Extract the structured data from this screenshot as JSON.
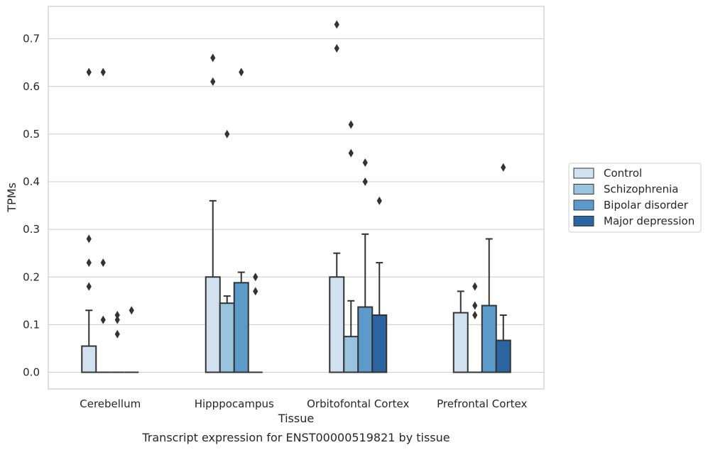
{
  "chart_data": {
    "type": "bar",
    "xlabel": "Tissue",
    "ylabel": "TPMs",
    "caption": "Transcript expression for ENST00000519821 by tissue",
    "ylim": [
      -0.035,
      0.768
    ],
    "yticks": [
      "0.0",
      "0.1",
      "0.2",
      "0.3",
      "0.4",
      "0.5",
      "0.6",
      "0.7"
    ],
    "grid": "horizontal",
    "legend_position": "right",
    "categories": [
      "Cerebellum",
      "Hipppocampus",
      "Orbitofontal Cortex",
      "Prefrontal Cortex"
    ],
    "series": [
      {
        "name": "Control",
        "color": "#d1e1f0",
        "values": [
          0.055,
          0.2,
          0.2,
          0.125
        ],
        "whisker_high": [
          0.13,
          0.36,
          0.25,
          0.17
        ],
        "outliers": [
          [
            0.18,
            0.23,
            0.28,
            0.63
          ],
          [
            0.61,
            0.66
          ],
          [
            0.68,
            0.73
          ],
          []
        ]
      },
      {
        "name": "Schizophrenia",
        "color": "#9ac4de",
        "values": [
          0.0,
          0.145,
          0.075,
          0.0
        ],
        "whisker_high": [
          0.0,
          0.16,
          0.15,
          0.0
        ],
        "outliers": [
          [
            0.11,
            0.23,
            0.63
          ],
          [
            0.5
          ],
          [
            0.46,
            0.52
          ],
          [
            0.12,
            0.14,
            0.18
          ]
        ]
      },
      {
        "name": "Bipolar disorder",
        "color": "#5b9ac9",
        "values": [
          0.0,
          0.188,
          0.137,
          0.14
        ],
        "whisker_high": [
          0.0,
          0.21,
          0.29,
          0.28
        ],
        "outliers": [
          [
            0.08,
            0.11,
            0.12
          ],
          [
            0.63
          ],
          [
            0.4,
            0.44
          ],
          []
        ]
      },
      {
        "name": "Major depression",
        "color": "#2b65a1",
        "values": [
          0.0,
          0.0,
          0.12,
          0.067
        ],
        "whisker_high": [
          0.0,
          0.0,
          0.23,
          0.12
        ],
        "outliers": [
          [
            0.13
          ],
          [
            0.17,
            0.2
          ],
          [
            0.36
          ],
          [
            0.43
          ]
        ]
      }
    ]
  }
}
